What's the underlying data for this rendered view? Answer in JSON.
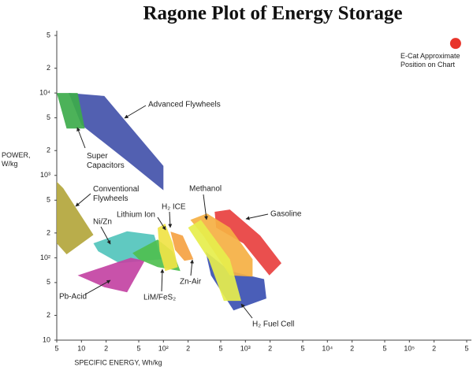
{
  "chart_data": {
    "type": "region",
    "title": "Ragone Plot of Energy Storage",
    "x_label": "SPECIFIC ENERGY, Wh/kg",
    "y_label": "POWER, W/kg",
    "xscale": "log",
    "yscale": "log",
    "xlim": [
      5,
      500000
    ],
    "ylim": [
      10,
      50000
    ],
    "xticks": [
      5,
      10,
      {
        "value": 20,
        "label": "2"
      },
      {
        "value": 50,
        "label": "5"
      },
      {
        "value": 100,
        "label": "10²"
      },
      {
        "value": 200,
        "label": "2"
      },
      {
        "value": 500,
        "label": "5"
      },
      {
        "value": 1000,
        "label": "10³"
      },
      {
        "value": 2000,
        "label": "2"
      },
      {
        "value": 5000,
        "label": "5"
      },
      {
        "value": 10000,
        "label": "10⁴"
      },
      {
        "value": 20000,
        "label": "2"
      },
      {
        "value": 50000,
        "label": "5"
      },
      {
        "value": 100000,
        "label": "10⁵"
      },
      {
        "value": 200000,
        "label": "2"
      },
      {
        "value": 500000,
        "label": "5"
      }
    ],
    "yticks": [
      10,
      {
        "value": 20,
        "label": "2"
      },
      {
        "value": 50,
        "label": "5"
      },
      {
        "value": 100,
        "label": "10²"
      },
      {
        "value": 200,
        "label": "2"
      },
      {
        "value": 500,
        "label": "5"
      },
      {
        "value": 1000,
        "label": "10³"
      },
      {
        "value": 2000,
        "label": "2"
      },
      {
        "value": 5000,
        "label": "5"
      },
      {
        "value": 10000,
        "label": "10⁴"
      },
      {
        "value": 20000,
        "label": "2"
      },
      {
        "value": 50000,
        "label": "5"
      }
    ],
    "series": [
      {
        "name": "Conventional Flywheels",
        "color": "#b3a63c",
        "x": [
          5,
          6,
          14,
          6.6,
          5
        ],
        "values": [
          840,
          700,
          190,
          110,
          150
        ]
      },
      {
        "name": "Advanced Flywheels",
        "color": "#4352aa",
        "x": [
          7,
          19,
          100,
          100,
          36,
          10
        ],
        "values": [
          10000,
          9200,
          1300,
          660,
          1500,
          4100
        ]
      },
      {
        "name": "Super Capacitors",
        "color": "#3dab4b",
        "x": [
          5,
          9,
          11,
          6.6
        ],
        "values": [
          10000,
          10000,
          3700,
          3700
        ]
      },
      {
        "name": "Ni/Zn",
        "color": "#52c4bc",
        "x": [
          14,
          36,
          77,
          95,
          29,
          16
        ],
        "values": [
          150,
          210,
          190,
          96,
          86,
          120
        ]
      },
      {
        "name": "Pb-Acid",
        "color": "#c343a3",
        "x": [
          9,
          40,
          59,
          36,
          19
        ],
        "values": [
          61,
          100,
          92,
          38,
          44
        ]
      },
      {
        "name": "LiM/FeS₂",
        "color": "#4fbf50",
        "x": [
          42,
          85,
          130,
          161,
          85,
          50
        ],
        "values": [
          114,
          166,
          119,
          69,
          77,
          96
        ]
      },
      {
        "name": "Lithium Ion",
        "color": "#f0e346",
        "x": [
          85,
          105,
          130,
          150,
          105,
          90
        ],
        "values": [
          230,
          260,
          150,
          77,
          69,
          120
        ]
      },
      {
        "name": "Zn-Air",
        "color": "#f5a243",
        "x": [
          122,
          172,
          232,
          180,
          139
        ],
        "values": [
          208,
          186,
          96,
          92,
          124
        ]
      },
      {
        "name": "H₂ Fuel Cell",
        "color": "#3b50b2",
        "x": [
          327,
          646,
          1690,
          1800,
          718,
          380
        ],
        "values": [
          119,
          69,
          55,
          32,
          23,
          61
        ]
      },
      {
        "name": "Gasoline",
        "color": "#e8403f",
        "x": [
          422,
          646,
          1515,
          2750,
          1960,
          948,
          440
        ],
        "values": [
          361,
          385,
          186,
          86,
          61,
          149,
          232
        ]
      },
      {
        "name": "Methanol",
        "color": "#f5b043",
        "x": [
          213,
          340,
          646,
          1224,
          1224,
          646,
          306
        ],
        "values": [
          289,
          345,
          232,
          96,
          59,
          61,
          186
        ]
      },
      {
        "name": "H₂ ICE",
        "color": "#e6ee4c",
        "x": [
          200,
          287,
          646,
          890,
          545,
          356
        ],
        "values": [
          232,
          289,
          96,
          30,
          30,
          96
        ]
      }
    ],
    "marker": {
      "name": "E-Cat Approximate Position on Chart",
      "color": "#e8352b",
      "x": 366000,
      "y": 40000
    }
  }
}
